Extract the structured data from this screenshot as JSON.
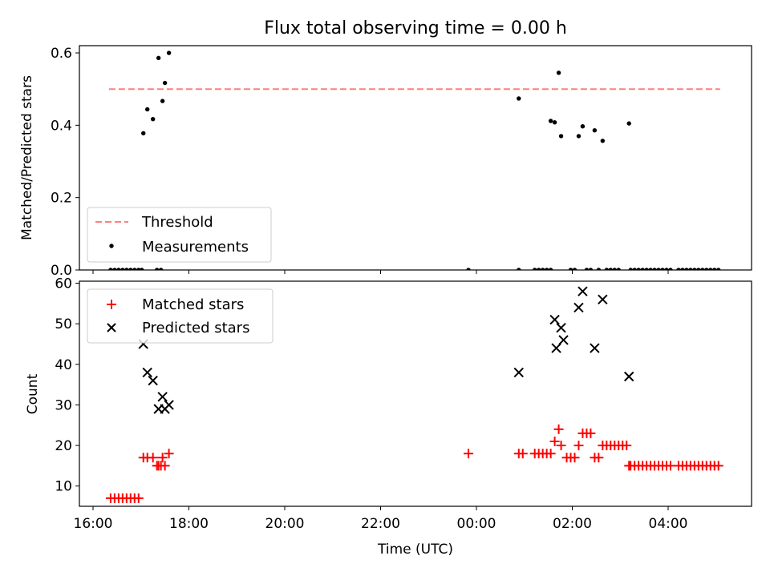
{
  "chart_data": [
    {
      "type": "scatter",
      "title": "Flux total observing time = 0.00 h",
      "ylabel": "Matched/Predicted stars",
      "xlabel": "",
      "ylim": [
        0.0,
        0.62
      ],
      "yticks": [
        0.0,
        0.2,
        0.4,
        0.6
      ],
      "ytick_labels": [
        "0.0",
        "0.2",
        "0.4",
        "0.6"
      ],
      "grid": false,
      "legend": "lower-left",
      "threshold": {
        "name": "Threshold",
        "value": 0.5,
        "x_start": "16:20",
        "x_end": "05:05",
        "color": "#ff7f7f",
        "style": "dashed"
      },
      "series": [
        {
          "name": "Measurements",
          "color": "#000000",
          "marker": "dot",
          "x": [
            "17:03",
            "17:08",
            "17:15",
            "17:22",
            "17:27",
            "17:30",
            "17:35",
            "00:53",
            "01:33",
            "01:38",
            "01:43",
            "01:46",
            "02:08",
            "02:13",
            "02:28",
            "02:38",
            "03:11",
            "16:22",
            "16:27",
            "16:32",
            "16:37",
            "16:42",
            "16:47",
            "16:52",
            "16:57",
            "17:01",
            "17:20",
            "17:25",
            "23:50",
            "00:53",
            "01:13",
            "01:18",
            "01:23",
            "01:28",
            "01:33",
            "01:58",
            "02:03",
            "02:18",
            "02:23",
            "02:33",
            "02:43",
            "02:48",
            "02:53",
            "02:58",
            "03:13",
            "03:18",
            "03:23",
            "03:28",
            "03:33",
            "03:38",
            "03:43",
            "03:48",
            "03:53",
            "03:58",
            "04:03",
            "04:13",
            "04:18",
            "04:23",
            "04:28",
            "04:33",
            "04:38",
            "04:43",
            "04:48",
            "04:53",
            "04:58",
            "05:03"
          ],
          "y": [
            0.378,
            0.444,
            0.417,
            0.586,
            0.467,
            0.517,
            0.6,
            0.474,
            0.412,
            0.408,
            0.545,
            0.37,
            0.37,
            0.397,
            0.386,
            0.357,
            0.405,
            0,
            0,
            0,
            0,
            0,
            0,
            0,
            0,
            0,
            0,
            0,
            0,
            0,
            0,
            0,
            0,
            0,
            0,
            0,
            0,
            0,
            0,
            0,
            0,
            0,
            0,
            0,
            0,
            0,
            0,
            0,
            0,
            0,
            0,
            0,
            0,
            0,
            0,
            0,
            0,
            0,
            0,
            0,
            0,
            0,
            0,
            0,
            0,
            0
          ]
        }
      ]
    },
    {
      "type": "scatter",
      "title": "",
      "xlabel": "Time (UTC)",
      "ylabel": "Count",
      "ylim": [
        5,
        60.5
      ],
      "yticks": [
        10,
        20,
        30,
        40,
        50,
        60
      ],
      "ytick_labels": [
        "10",
        "20",
        "30",
        "40",
        "50",
        "60"
      ],
      "xticks": [
        "16:00",
        "18:00",
        "20:00",
        "22:00",
        "00:00",
        "02:00",
        "04:00"
      ],
      "xrange": [
        "15:55",
        "05:55"
      ],
      "grid": false,
      "legend": "upper-left",
      "series": [
        {
          "name": "Matched stars",
          "color": "#ff0000",
          "marker": "plus",
          "x": [
            "16:22",
            "16:27",
            "16:32",
            "16:37",
            "16:42",
            "16:47",
            "16:52",
            "16:57",
            "17:03",
            "17:08",
            "17:15",
            "17:20",
            "17:22",
            "17:25",
            "17:27",
            "17:30",
            "17:35",
            "23:50",
            "00:53",
            "00:58",
            "01:13",
            "01:18",
            "01:23",
            "01:28",
            "01:33",
            "01:38",
            "01:43",
            "01:46",
            "01:53",
            "01:58",
            "02:03",
            "02:08",
            "02:13",
            "02:18",
            "02:23",
            "02:28",
            "02:33",
            "02:38",
            "02:43",
            "02:48",
            "02:53",
            "02:58",
            "03:03",
            "03:08",
            "03:11",
            "03:13",
            "03:18",
            "03:23",
            "03:28",
            "03:33",
            "03:38",
            "03:43",
            "03:48",
            "03:53",
            "03:58",
            "04:03",
            "04:13",
            "04:18",
            "04:23",
            "04:28",
            "04:33",
            "04:38",
            "04:43",
            "04:48",
            "04:53",
            "04:58",
            "05:03"
          ],
          "y": [
            7,
            7,
            7,
            7,
            7,
            7,
            7,
            7,
            17,
            17,
            17,
            15,
            15,
            15,
            17,
            15,
            18,
            18,
            18,
            18,
            18,
            18,
            18,
            18,
            18,
            21,
            24,
            20,
            17,
            17,
            17,
            20,
            23,
            23,
            23,
            17,
            17,
            20,
            20,
            20,
            20,
            20,
            20,
            20,
            15,
            15,
            15,
            15,
            15,
            15,
            15,
            15,
            15,
            15,
            15,
            15,
            15,
            15,
            15,
            15,
            15,
            15,
            15,
            15,
            15,
            15,
            15
          ]
        },
        {
          "name": "Predicted stars",
          "color": "#000000",
          "marker": "x",
          "x": [
            "17:03",
            "17:08",
            "17:15",
            "17:22",
            "17:27",
            "17:30",
            "17:35",
            "00:53",
            "01:38",
            "01:40",
            "01:46",
            "01:49",
            "02:08",
            "02:13",
            "02:28",
            "02:38",
            "03:11"
          ],
          "y": [
            45,
            38,
            36,
            29,
            32,
            29,
            30,
            38,
            51,
            44,
            49,
            46,
            54,
            58,
            44,
            56,
            37
          ]
        }
      ]
    }
  ]
}
